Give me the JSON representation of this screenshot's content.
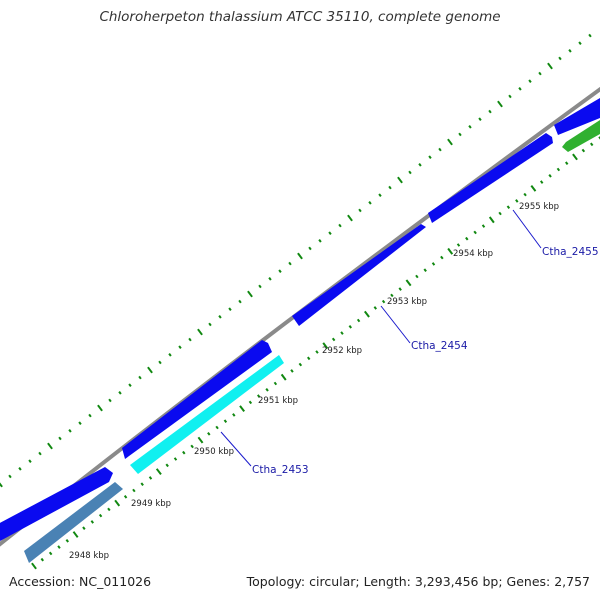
{
  "title": "Chloroherpeton thalassium ATCC 35110, complete genome",
  "footer": {
    "accession": "Accession: NC_011026",
    "summary": "Topology: circular; Length: 3,293,456 bp; Genes: 2,757"
  },
  "kbp_labels": [
    "2948 kbp",
    "2949 kbp",
    "2950 kbp",
    "2951 kbp",
    "2952 kbp",
    "2953 kbp",
    "2954 kbp",
    "2955 kbp"
  ],
  "gene_labels": [
    "Ctha_2453",
    "Ctha_2454",
    "Ctha_2455"
  ],
  "colors": {
    "backbone": "#8a8a8a",
    "forward_cds": "#0a0af0",
    "reverse_cds_cyan": "#10f0f0",
    "reverse_cds_steel": "#4a82b4",
    "reverse_cds_green": "#30b030",
    "ticks": "#118811",
    "callout": "#1a1acc"
  }
}
